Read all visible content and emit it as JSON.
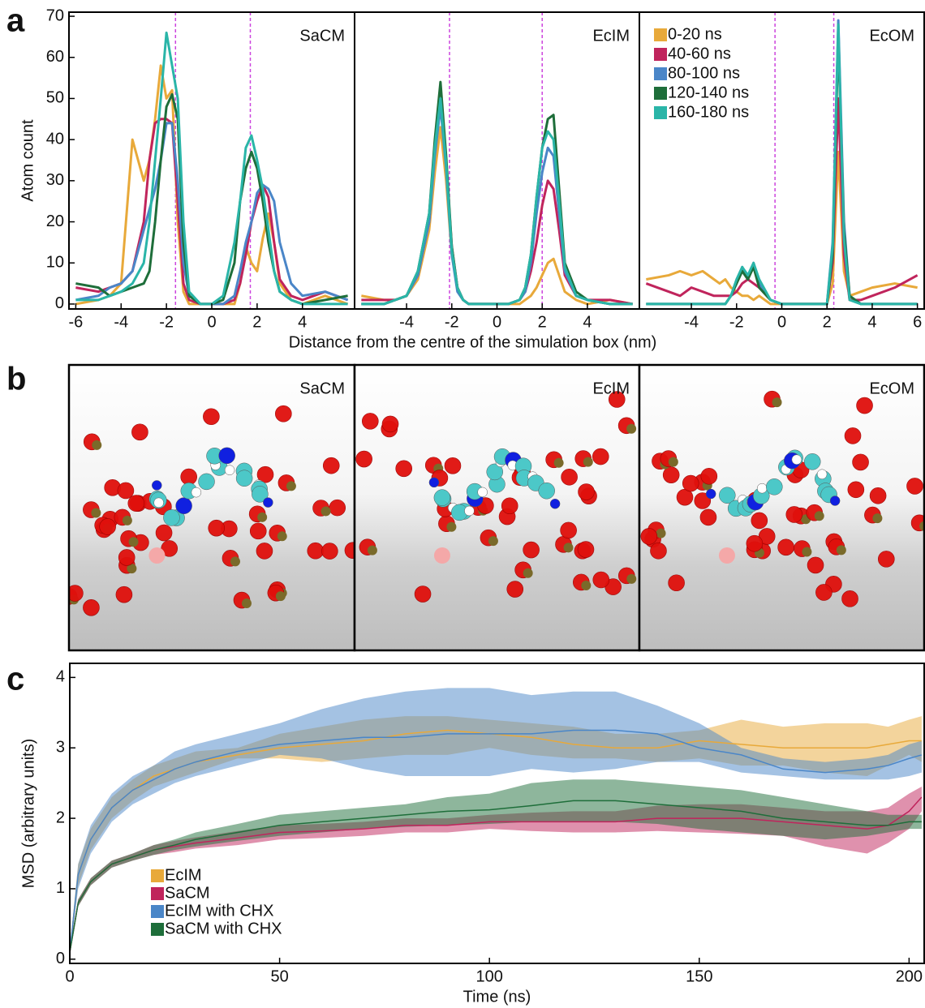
{
  "panel_labels": [
    "a",
    "b",
    "c"
  ],
  "chart_data": [
    {
      "type": "line",
      "title": "SaCM",
      "ylabel": "Atom count",
      "x": [
        -6,
        -5,
        -4.5,
        -4,
        -3.5,
        -3,
        -2.75,
        -2.5,
        -2.25,
        -2,
        -1.75,
        -1.5,
        -1.25,
        -1,
        -0.5,
        0,
        0.5,
        1,
        1.25,
        1.5,
        1.75,
        2,
        2.25,
        2.5,
        2.75,
        3,
        3.5,
        4,
        5,
        6
      ],
      "xlim": [
        -6.3,
        6.3
      ],
      "xticks": [
        -6,
        -4,
        -2,
        0,
        2,
        4
      ],
      "ylim": [
        -1.2,
        71
      ],
      "yticks": [
        0,
        10,
        20,
        30,
        40,
        50,
        60,
        70
      ],
      "vlines": [
        -1.6,
        1.7
      ],
      "vline_color": "#cc44dd",
      "series": [
        {
          "color": "#e8a93a",
          "values": [
            0,
            1,
            2,
            5,
            40,
            30,
            35,
            45,
            58,
            50,
            52,
            20,
            3,
            0,
            0,
            0,
            0,
            0,
            5,
            14,
            10,
            8,
            16,
            22,
            15,
            5,
            1,
            0,
            2,
            0
          ]
        },
        {
          "color": "#c0245c",
          "values": [
            4,
            3,
            4,
            5,
            8,
            20,
            35,
            44,
            45,
            45,
            44,
            25,
            5,
            1,
            0,
            0,
            0,
            1,
            5,
            12,
            20,
            25,
            29,
            26,
            15,
            6,
            2,
            1,
            3,
            1
          ]
        },
        {
          "color": "#4a86c8",
          "values": [
            1,
            2,
            4,
            5,
            8,
            18,
            23,
            28,
            35,
            44,
            44,
            30,
            10,
            2,
            0,
            0,
            0,
            2,
            8,
            15,
            20,
            27,
            29,
            28,
            25,
            15,
            5,
            2,
            3,
            1
          ]
        },
        {
          "color": "#1e6e3a",
          "values": [
            5,
            4,
            2,
            3,
            4,
            5,
            8,
            20,
            35,
            48,
            51,
            45,
            15,
            2,
            0,
            0,
            1,
            10,
            25,
            33,
            37,
            33,
            25,
            15,
            8,
            3,
            1,
            0,
            1,
            2
          ]
        },
        {
          "color": "#2ab5a8",
          "values": [
            1,
            1,
            2,
            3,
            5,
            10,
            20,
            35,
            50,
            66,
            58,
            50,
            20,
            3,
            0,
            0,
            2,
            15,
            25,
            38,
            41,
            35,
            28,
            18,
            8,
            3,
            1,
            0,
            0,
            0
          ]
        }
      ]
    },
    {
      "type": "line",
      "title": "EcIM",
      "xlabel": "Distance from the centre of the simulation box (nm)",
      "x": [
        -6,
        -5,
        -4.5,
        -4,
        -3.5,
        -3,
        -2.75,
        -2.5,
        -2.25,
        -2,
        -1.75,
        -1.5,
        -1.25,
        -1,
        -0.5,
        0,
        0.5,
        1,
        1.25,
        1.5,
        1.75,
        2,
        2.25,
        2.5,
        2.75,
        3,
        3.5,
        4,
        5,
        6
      ],
      "xlim": [
        -6.3,
        6.3
      ],
      "xticks": [
        -4,
        -2,
        0,
        2,
        4
      ],
      "ylim": [
        -1.2,
        71
      ],
      "vlines": [
        -2.1,
        2.0
      ],
      "vline_color": "#cc44dd",
      "series": [
        {
          "color": "#e8a93a",
          "values": [
            2,
            1,
            1,
            2,
            6,
            18,
            32,
            43,
            30,
            12,
            4,
            1,
            0,
            0,
            0,
            0,
            0,
            0,
            1,
            2,
            4,
            7,
            10,
            11,
            7,
            3,
            1,
            0,
            1,
            0
          ]
        },
        {
          "color": "#c0245c",
          "values": [
            1,
            1,
            1,
            2,
            7,
            20,
            38,
            50,
            34,
            14,
            4,
            1,
            0,
            0,
            0,
            0,
            0,
            1,
            3,
            8,
            15,
            24,
            30,
            28,
            18,
            7,
            2,
            1,
            1,
            0
          ]
        },
        {
          "color": "#4a86c8",
          "values": [
            0,
            0,
            1,
            2,
            7,
            20,
            36,
            48,
            33,
            12,
            3,
            1,
            0,
            0,
            0,
            0,
            0,
            1,
            3,
            10,
            22,
            32,
            38,
            36,
            22,
            8,
            2,
            1,
            0,
            0
          ]
        },
        {
          "color": "#1e6e3a",
          "values": [
            0,
            0,
            1,
            2,
            8,
            22,
            40,
            54,
            36,
            14,
            4,
            1,
            0,
            0,
            0,
            0,
            0,
            1,
            4,
            12,
            26,
            38,
            45,
            46,
            28,
            10,
            3,
            1,
            0,
            0
          ]
        },
        {
          "color": "#2ab5a8",
          "values": [
            0,
            0,
            1,
            2,
            8,
            22,
            38,
            50,
            34,
            13,
            4,
            1,
            0,
            0,
            0,
            0,
            0,
            1,
            4,
            12,
            26,
            38,
            42,
            40,
            25,
            9,
            2,
            1,
            0,
            0
          ]
        }
      ]
    },
    {
      "type": "line",
      "title": "EcOM",
      "legend": "upper left",
      "x": [
        -6,
        -5,
        -4.5,
        -4,
        -3.5,
        -3,
        -2.75,
        -2.5,
        -2.25,
        -2,
        -1.75,
        -1.5,
        -1.25,
        -1,
        -0.5,
        0,
        0.5,
        1,
        1.25,
        1.5,
        1.75,
        2,
        2.25,
        2.5,
        2.75,
        3,
        3.5,
        4,
        5,
        6
      ],
      "xlim": [
        -6.3,
        6.3
      ],
      "xticks": [
        -4,
        -2,
        0,
        2,
        4,
        6
      ],
      "ylim": [
        -1.2,
        71
      ],
      "vlines": [
        -0.3,
        2.3
      ],
      "vline_color": "#cc44dd",
      "series": [
        {
          "name": "0-20 ns",
          "color": "#e8a93a",
          "values": [
            6,
            7,
            8,
            7,
            8,
            6,
            5,
            6,
            4,
            3,
            2,
            2,
            1,
            2,
            0,
            0,
            0,
            0,
            0,
            0,
            0,
            0,
            5,
            37,
            8,
            2,
            3,
            4,
            5,
            4
          ]
        },
        {
          "name": "40-60 ns",
          "color": "#c0245c",
          "values": [
            5,
            3,
            2,
            4,
            3,
            2,
            2,
            2,
            2,
            3,
            5,
            6,
            5,
            4,
            1,
            0,
            0,
            0,
            0,
            0,
            0,
            0,
            10,
            50,
            12,
            1,
            1,
            2,
            4,
            7
          ]
        },
        {
          "name": "80-100 ns",
          "color": "#4a86c8",
          "values": [
            0,
            0,
            0,
            0,
            0,
            0,
            0,
            0,
            2,
            5,
            9,
            6,
            10,
            5,
            1,
            0,
            0,
            0,
            0,
            0,
            0,
            0,
            15,
            69,
            20,
            2,
            0,
            0,
            0,
            0
          ]
        },
        {
          "name": "120-140 ns",
          "color": "#1e6e3a",
          "values": [
            0,
            0,
            0,
            0,
            0,
            0,
            0,
            0,
            2,
            5,
            8,
            6,
            9,
            4,
            1,
            0,
            0,
            0,
            0,
            0,
            0,
            0,
            12,
            65,
            18,
            2,
            0,
            0,
            0,
            0
          ]
        },
        {
          "name": "160-180 ns",
          "color": "#2ab5a8",
          "values": [
            0,
            0,
            0,
            0,
            0,
            0,
            0,
            0,
            2,
            6,
            9,
            7,
            10,
            6,
            1,
            0,
            0,
            0,
            0,
            0,
            0,
            0,
            14,
            68,
            16,
            1,
            0,
            0,
            0,
            0
          ]
        }
      ]
    },
    {
      "type": "band",
      "xlabel": "Time (ns)",
      "ylabel": "MSD (arbitrary units)",
      "legend": "lower left",
      "x": [
        0,
        2,
        5,
        10,
        15,
        20,
        25,
        30,
        40,
        50,
        60,
        70,
        80,
        90,
        100,
        110,
        120,
        130,
        140,
        150,
        160,
        170,
        180,
        190,
        195,
        200,
        203
      ],
      "xlim": [
        0,
        203.6
      ],
      "xticks": [
        0,
        50,
        100,
        150,
        200
      ],
      "ylim": [
        -0.06,
        4.2
      ],
      "yticks": [
        0,
        1,
        2,
        3,
        4
      ],
      "series": [
        {
          "name": "EcIM",
          "color": "#e8a93a",
          "values": [
            0.1,
            1.2,
            1.7,
            2.15,
            2.4,
            2.6,
            2.7,
            2.8,
            2.9,
            3.0,
            3.05,
            3.1,
            3.2,
            3.25,
            3.2,
            3.15,
            3.05,
            3.0,
            3.0,
            3.1,
            3.05,
            3.0,
            3.0,
            3.0,
            3.05,
            3.1,
            3.1
          ],
          "lower": [
            0.05,
            1.05,
            1.55,
            2.0,
            2.25,
            2.45,
            2.55,
            2.65,
            2.85,
            2.85,
            2.8,
            2.85,
            2.9,
            2.9,
            3.0,
            2.9,
            2.85,
            2.85,
            2.8,
            2.85,
            2.75,
            2.75,
            2.65,
            2.6,
            2.75,
            2.9,
            2.8
          ],
          "upper": [
            0.15,
            1.35,
            1.85,
            2.3,
            2.55,
            2.75,
            2.85,
            2.95,
            3.0,
            3.2,
            3.3,
            3.4,
            3.45,
            3.45,
            3.4,
            3.35,
            3.3,
            3.2,
            3.2,
            3.25,
            3.4,
            3.3,
            3.35,
            3.35,
            3.3,
            3.4,
            3.45
          ]
        },
        {
          "name": "SaCM",
          "color": "#c0245c",
          "values": [
            0.1,
            0.8,
            1.1,
            1.35,
            1.45,
            1.55,
            1.6,
            1.65,
            1.72,
            1.8,
            1.82,
            1.85,
            1.9,
            1.9,
            1.95,
            1.95,
            1.95,
            1.95,
            2.0,
            2.0,
            2.0,
            1.95,
            1.9,
            1.85,
            1.9,
            2.1,
            2.3
          ],
          "lower": [
            0.05,
            0.75,
            1.05,
            1.3,
            1.4,
            1.48,
            1.52,
            1.57,
            1.62,
            1.7,
            1.72,
            1.75,
            1.8,
            1.8,
            1.85,
            1.82,
            1.8,
            1.8,
            1.82,
            1.8,
            1.78,
            1.75,
            1.6,
            1.5,
            1.65,
            1.85,
            2.1
          ],
          "upper": [
            0.15,
            0.85,
            1.15,
            1.4,
            1.5,
            1.62,
            1.68,
            1.73,
            1.82,
            1.9,
            1.92,
            1.95,
            2.0,
            2.0,
            2.05,
            2.08,
            2.1,
            2.1,
            2.18,
            2.2,
            2.2,
            2.15,
            2.1,
            2.1,
            2.15,
            2.35,
            2.45
          ]
        },
        {
          "name": "EcIM with CHX",
          "color": "#4a86c8",
          "values": [
            0.1,
            1.2,
            1.7,
            2.15,
            2.4,
            2.55,
            2.7,
            2.8,
            2.95,
            3.05,
            3.1,
            3.15,
            3.15,
            3.2,
            3.2,
            3.2,
            3.25,
            3.25,
            3.2,
            3.0,
            2.9,
            2.7,
            2.65,
            2.7,
            2.75,
            2.85,
            2.9
          ],
          "lower": [
            0.05,
            1.0,
            1.5,
            1.95,
            2.2,
            2.35,
            2.5,
            2.6,
            2.75,
            2.9,
            2.85,
            2.7,
            2.6,
            2.6,
            2.6,
            2.7,
            2.65,
            2.7,
            2.8,
            2.8,
            2.65,
            2.6,
            2.55,
            2.55,
            2.55,
            2.6,
            2.65
          ],
          "upper": [
            0.15,
            1.35,
            1.9,
            2.35,
            2.6,
            2.75,
            2.95,
            3.05,
            3.2,
            3.35,
            3.55,
            3.7,
            3.8,
            3.85,
            3.85,
            3.75,
            3.8,
            3.8,
            3.6,
            3.35,
            3.0,
            2.85,
            2.8,
            2.85,
            2.9,
            3.05,
            3.1
          ]
        },
        {
          "name": "SaCM with CHX",
          "color": "#1e6e3a",
          "values": [
            0.1,
            0.8,
            1.1,
            1.35,
            1.45,
            1.55,
            1.62,
            1.7,
            1.8,
            1.9,
            1.95,
            2.0,
            2.05,
            2.1,
            2.12,
            2.18,
            2.25,
            2.25,
            2.2,
            2.15,
            2.1,
            2.0,
            1.95,
            1.9,
            1.9,
            1.95,
            1.95
          ],
          "lower": [
            0.05,
            0.75,
            1.05,
            1.3,
            1.4,
            1.48,
            1.55,
            1.6,
            1.68,
            1.75,
            1.8,
            1.85,
            1.88,
            1.9,
            1.92,
            1.95,
            1.95,
            1.95,
            1.92,
            1.85,
            1.8,
            1.75,
            1.7,
            1.75,
            1.8,
            1.85,
            1.85
          ],
          "upper": [
            0.15,
            0.85,
            1.15,
            1.4,
            1.5,
            1.62,
            1.7,
            1.8,
            1.92,
            2.05,
            2.1,
            2.15,
            2.2,
            2.3,
            2.35,
            2.5,
            2.55,
            2.55,
            2.5,
            2.45,
            2.4,
            2.3,
            2.2,
            2.1,
            2.05,
            2.05,
            2.05
          ]
        }
      ]
    }
  ],
  "images": [
    {
      "label": "SaCM"
    },
    {
      "label": "EcIM"
    },
    {
      "label": "EcOM"
    }
  ]
}
